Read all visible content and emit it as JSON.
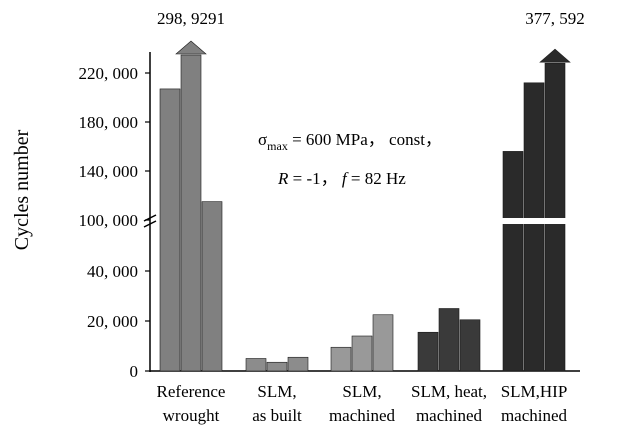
{
  "chart_data": {
    "type": "bar",
    "ylabel": "Cycles number",
    "axis_break": true,
    "y_ticks_lower": [
      "0",
      "20, 000",
      "40, 000"
    ],
    "y_ticks_upper": [
      "100, 000",
      "140, 000",
      "180, 000",
      "220, 000"
    ],
    "annotation": {
      "line1_sigma": "σ",
      "line1_sub": "max",
      "line1_rest": " = 600 MPa， const，",
      "line2_R": "R",
      "line2_mid": " = -1， ",
      "line2_f": "f",
      "line2_rest": " = 82 Hz"
    },
    "groups": [
      {
        "label_lines": [
          "Reference",
          "wrought"
        ],
        "color": "#808080",
        "values": [
          207000,
          235000,
          115000
        ],
        "overflow": {
          "bar_index": 1,
          "label": "298, 9291"
        }
      },
      {
        "label_lines": [
          "SLM,",
          "as built"
        ],
        "color": "#8c8c8c",
        "values": [
          5000,
          3500,
          5500
        ]
      },
      {
        "label_lines": [
          "SLM,",
          "machined"
        ],
        "color": "#999999",
        "values": [
          9500,
          14000,
          22500
        ]
      },
      {
        "label_lines": [
          "SLM, heat,",
          "machined"
        ],
        "color": "#3a3a3a",
        "values": [
          15500,
          25000,
          20500
        ]
      },
      {
        "label_lines": [
          "SLM,HIP",
          "machined"
        ],
        "color": "#2a2a2a",
        "values": [
          156000,
          212000,
          228000
        ],
        "overflow": {
          "bar_index": 2,
          "label": "377, 592"
        }
      }
    ]
  }
}
